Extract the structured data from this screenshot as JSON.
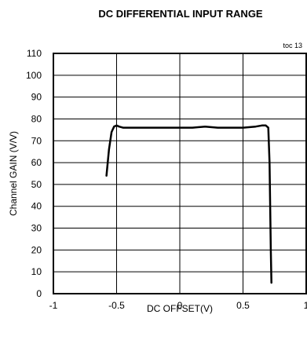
{
  "chart_data": {
    "type": "line",
    "title": "DC DIFFERENTIAL INPUT RANGE",
    "tag": "toc 13",
    "xlabel": "DC OFFSET(V)",
    "ylabel": "Channel GAIN (V/V)",
    "xlim": [
      -1,
      1
    ],
    "ylim": [
      0,
      110
    ],
    "x_ticks": [
      -1,
      -0.5,
      0,
      0.5,
      1
    ],
    "y_ticks": [
      0,
      10,
      20,
      30,
      40,
      50,
      60,
      70,
      80,
      90,
      100,
      110
    ],
    "grid": true,
    "legend": "none",
    "series": [
      {
        "color": "#000000",
        "x": [
          -0.58,
          -0.56,
          -0.54,
          -0.52,
          -0.5,
          -0.48,
          -0.45,
          -0.4,
          -0.3,
          -0.2,
          -0.1,
          0,
          0.1,
          0.2,
          0.3,
          0.4,
          0.5,
          0.6,
          0.65,
          0.68,
          0.7,
          0.71,
          0.715,
          0.72,
          0.725
        ],
        "y": [
          54,
          66,
          74,
          76.5,
          77,
          76.5,
          76,
          76,
          76,
          76,
          76,
          76,
          76,
          76.5,
          76,
          76,
          76,
          76.5,
          77,
          77,
          76,
          60,
          40,
          20,
          5
        ]
      }
    ]
  }
}
